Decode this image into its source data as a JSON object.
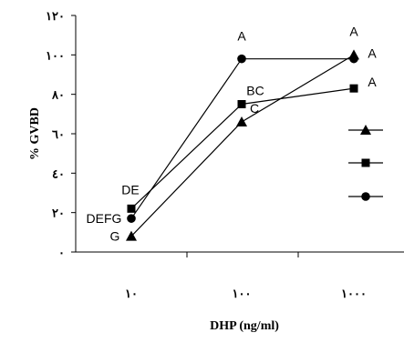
{
  "chart_data": {
    "type": "line",
    "categories": [
      "١٠",
      "١٠٠",
      "١٠٠٠"
    ],
    "x": [
      10,
      100,
      1000
    ],
    "xlabel": "DHP (ng/ml)",
    "ylabel": "% GVBD",
    "ylim": [
      0,
      120
    ],
    "yticks": [
      0,
      20,
      40,
      60,
      80,
      100,
      120
    ],
    "ytick_labels": [
      "٠",
      "٢٠",
      "٤٠",
      "٦٠",
      "٨٠",
      "١٠٠",
      "١٢٠"
    ],
    "grid": false,
    "legend_position": "right",
    "series": [
      {
        "marker": "triangle",
        "values": [
          8,
          66,
          100
        ]
      },
      {
        "marker": "square",
        "values": [
          22,
          75,
          83
        ]
      },
      {
        "marker": "circle",
        "values": [
          17,
          98,
          98
        ]
      }
    ],
    "annotations": [
      {
        "text": "G",
        "x": 10,
        "y": 8
      },
      {
        "text": "DEFG",
        "x": 10,
        "y": 17
      },
      {
        "text": "DE",
        "x": 10,
        "y": 22
      },
      {
        "text": "C",
        "x": 100,
        "y": 66
      },
      {
        "text": "BC",
        "x": 100,
        "y": 75
      },
      {
        "text": "A",
        "x": 100,
        "y": 98
      },
      {
        "text": "A",
        "x": 1000,
        "y": 83
      },
      {
        "text": "A",
        "x": 1000,
        "y": 98
      },
      {
        "text": "A",
        "x": 1000,
        "y": 100
      }
    ],
    "colors": {
      "line": "#000000",
      "marker": "#000000"
    }
  }
}
